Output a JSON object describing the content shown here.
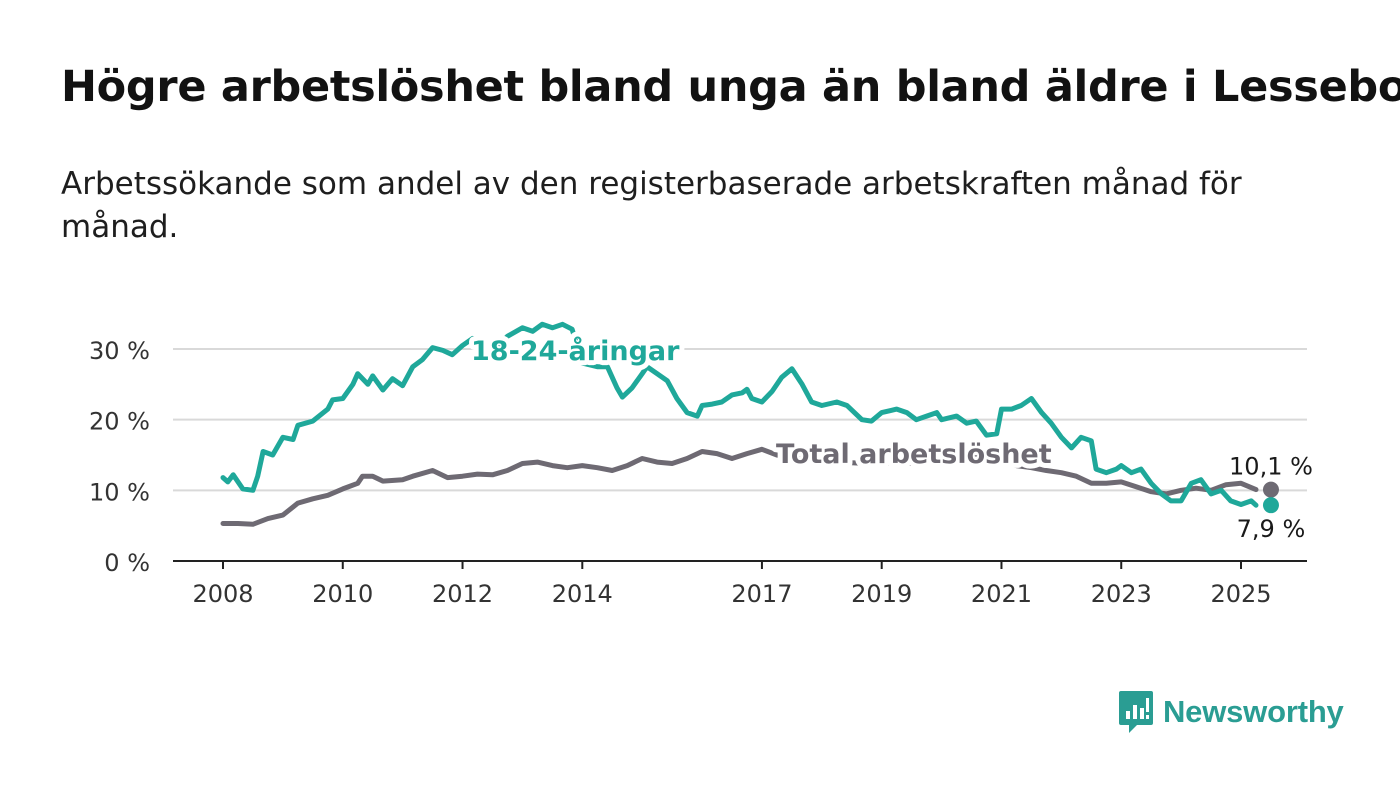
{
  "title": "Högre arbetslöshet bland unga än bland äldre i Lessebo",
  "subtitle": "Arbetssökande som andel av den registerbaserade arbetskraften månad för månad.",
  "brand": {
    "name": "Newsworthy",
    "icon": "newsworthy-logo-icon",
    "color": "#2a9d93"
  },
  "chart_data": {
    "type": "line",
    "ylim": [
      0,
      30
    ],
    "yticks": [
      0,
      10,
      20,
      30
    ],
    "ytick_labels": [
      "0 %",
      "10 %",
      "20 %",
      "30 %"
    ],
    "xticks": [
      2008,
      2010,
      2012,
      2014,
      2017,
      2019,
      2021,
      2023,
      2025
    ],
    "xtick_labels": [
      "2008",
      "2010",
      "2012",
      "2014",
      "2017",
      "2019",
      "2021",
      "2023",
      "2025"
    ],
    "grid": true,
    "series": [
      {
        "name": "Total arbetslöshet",
        "color": "#6e6a73",
        "end_label": "10,1 %",
        "points": [
          [
            2008.0,
            5.3
          ],
          [
            2008.25,
            5.3
          ],
          [
            2008.5,
            5.2
          ],
          [
            2008.75,
            6.0
          ],
          [
            2009.0,
            6.5
          ],
          [
            2009.25,
            8.2
          ],
          [
            2009.5,
            8.8
          ],
          [
            2009.75,
            9.3
          ],
          [
            2010.0,
            10.2
          ],
          [
            2010.25,
            11.0
          ],
          [
            2010.33,
            12.0
          ],
          [
            2010.5,
            12.0
          ],
          [
            2010.67,
            11.3
          ],
          [
            2011.0,
            11.5
          ],
          [
            2011.17,
            12.0
          ],
          [
            2011.5,
            12.8
          ],
          [
            2011.75,
            11.8
          ],
          [
            2012.0,
            12.0
          ],
          [
            2012.25,
            12.3
          ],
          [
            2012.5,
            12.2
          ],
          [
            2012.75,
            12.8
          ],
          [
            2013.0,
            13.8
          ],
          [
            2013.25,
            14.0
          ],
          [
            2013.5,
            13.5
          ],
          [
            2013.75,
            13.2
          ],
          [
            2014.0,
            13.5
          ],
          [
            2014.25,
            13.2
          ],
          [
            2014.5,
            12.8
          ],
          [
            2014.75,
            13.5
          ],
          [
            2015.0,
            14.5
          ],
          [
            2015.25,
            14.0
          ],
          [
            2015.5,
            13.8
          ],
          [
            2015.75,
            14.5
          ],
          [
            2016.0,
            15.5
          ],
          [
            2016.25,
            15.2
          ],
          [
            2016.5,
            14.5
          ],
          [
            2016.75,
            15.2
          ],
          [
            2017.0,
            15.8
          ],
          [
            2017.25,
            15.0
          ],
          [
            2017.5,
            14.6
          ],
          [
            2017.75,
            14.3
          ],
          [
            2018.0,
            14.2
          ],
          [
            2018.25,
            14.0
          ],
          [
            2018.5,
            13.9
          ],
          [
            2018.75,
            13.8
          ],
          [
            2019.0,
            13.8
          ],
          [
            2019.25,
            13.9
          ],
          [
            2019.5,
            13.8
          ],
          [
            2019.75,
            14.0
          ],
          [
            2020.0,
            14.5
          ],
          [
            2020.25,
            15.0
          ],
          [
            2020.5,
            15.0
          ],
          [
            2020.75,
            14.5
          ],
          [
            2021.0,
            14.0
          ],
          [
            2021.25,
            13.5
          ],
          [
            2021.5,
            13.2
          ],
          [
            2021.75,
            12.8
          ],
          [
            2022.0,
            12.5
          ],
          [
            2022.25,
            12.0
          ],
          [
            2022.5,
            11.0
          ],
          [
            2022.75,
            11.0
          ],
          [
            2023.0,
            11.2
          ],
          [
            2023.25,
            10.5
          ],
          [
            2023.5,
            9.8
          ],
          [
            2023.75,
            9.5
          ],
          [
            2024.0,
            10.0
          ],
          [
            2024.25,
            10.3
          ],
          [
            2024.5,
            10.0
          ],
          [
            2024.75,
            10.8
          ],
          [
            2025.0,
            11.0
          ],
          [
            2025.25,
            10.1
          ]
        ]
      },
      {
        "name": "18-24-åringar",
        "color": "#1fa89a",
        "end_label": "7,9 %",
        "points": [
          [
            2008.0,
            11.8
          ],
          [
            2008.08,
            11.2
          ],
          [
            2008.17,
            12.2
          ],
          [
            2008.33,
            10.2
          ],
          [
            2008.5,
            10.0
          ],
          [
            2008.58,
            12.0
          ],
          [
            2008.67,
            15.5
          ],
          [
            2008.83,
            15.0
          ],
          [
            2009.0,
            17.5
          ],
          [
            2009.17,
            17.2
          ],
          [
            2009.25,
            19.2
          ],
          [
            2009.5,
            19.8
          ],
          [
            2009.75,
            21.5
          ],
          [
            2009.83,
            22.8
          ],
          [
            2010.0,
            23.0
          ],
          [
            2010.17,
            25.0
          ],
          [
            2010.25,
            26.5
          ],
          [
            2010.42,
            25.0
          ],
          [
            2010.5,
            26.2
          ],
          [
            2010.67,
            24.2
          ],
          [
            2010.83,
            25.8
          ],
          [
            2011.0,
            24.8
          ],
          [
            2011.17,
            27.5
          ],
          [
            2011.33,
            28.5
          ],
          [
            2011.5,
            30.2
          ],
          [
            2011.67,
            29.8
          ],
          [
            2011.83,
            29.2
          ],
          [
            2012.0,
            30.5
          ],
          [
            2012.17,
            31.5
          ],
          [
            2012.25,
            30.0
          ],
          [
            2012.42,
            29.0
          ],
          [
            2012.5,
            29.5
          ],
          [
            2012.75,
            31.8
          ],
          [
            2013.0,
            33.0
          ],
          [
            2013.17,
            32.5
          ],
          [
            2013.33,
            33.5
          ],
          [
            2013.5,
            33.0
          ],
          [
            2013.67,
            33.5
          ],
          [
            2013.83,
            32.8
          ],
          [
            2014.0,
            28.0
          ],
          [
            2014.25,
            27.5
          ],
          [
            2014.42,
            27.5
          ],
          [
            2014.58,
            24.5
          ],
          [
            2014.67,
            23.2
          ],
          [
            2014.83,
            24.5
          ],
          [
            2015.0,
            26.5
          ],
          [
            2015.08,
            27.5
          ],
          [
            2015.25,
            26.5
          ],
          [
            2015.42,
            25.5
          ],
          [
            2015.58,
            23.0
          ],
          [
            2015.75,
            21.0
          ],
          [
            2015.92,
            20.5
          ],
          [
            2016.0,
            22.0
          ],
          [
            2016.17,
            22.2
          ],
          [
            2016.33,
            22.5
          ],
          [
            2016.5,
            23.5
          ],
          [
            2016.67,
            23.8
          ],
          [
            2016.75,
            24.3
          ],
          [
            2016.83,
            23.0
          ],
          [
            2017.0,
            22.5
          ],
          [
            2017.17,
            24.0
          ],
          [
            2017.33,
            26.0
          ],
          [
            2017.5,
            27.2
          ],
          [
            2017.67,
            25.0
          ],
          [
            2017.83,
            22.5
          ],
          [
            2018.0,
            22.0
          ],
          [
            2018.25,
            22.5
          ],
          [
            2018.42,
            22.0
          ],
          [
            2018.67,
            20.0
          ],
          [
            2018.83,
            19.8
          ],
          [
            2019.0,
            21.0
          ],
          [
            2019.25,
            21.5
          ],
          [
            2019.42,
            21.0
          ],
          [
            2019.58,
            20.0
          ],
          [
            2019.75,
            20.5
          ],
          [
            2019.92,
            21.0
          ],
          [
            2020.0,
            20.0
          ],
          [
            2020.25,
            20.5
          ],
          [
            2020.42,
            19.5
          ],
          [
            2020.58,
            19.8
          ],
          [
            2020.75,
            17.8
          ],
          [
            2020.92,
            18.0
          ],
          [
            2021.0,
            21.5
          ],
          [
            2021.17,
            21.5
          ],
          [
            2021.33,
            22.0
          ],
          [
            2021.5,
            23.0
          ],
          [
            2021.67,
            21.0
          ],
          [
            2021.83,
            19.5
          ],
          [
            2022.0,
            17.5
          ],
          [
            2022.17,
            16.0
          ],
          [
            2022.33,
            17.5
          ],
          [
            2022.5,
            17.0
          ],
          [
            2022.58,
            13.0
          ],
          [
            2022.75,
            12.5
          ],
          [
            2022.92,
            13.0
          ],
          [
            2023.0,
            13.5
          ],
          [
            2023.17,
            12.5
          ],
          [
            2023.33,
            13.0
          ],
          [
            2023.5,
            11.0
          ],
          [
            2023.67,
            9.5
          ],
          [
            2023.83,
            8.5
          ],
          [
            2024.0,
            8.5
          ],
          [
            2024.17,
            11.0
          ],
          [
            2024.33,
            11.5
          ],
          [
            2024.5,
            9.5
          ],
          [
            2024.67,
            10.0
          ],
          [
            2024.83,
            8.5
          ],
          [
            2025.0,
            8.0
          ],
          [
            2025.17,
            8.5
          ],
          [
            2025.25,
            7.9
          ]
        ]
      }
    ]
  }
}
